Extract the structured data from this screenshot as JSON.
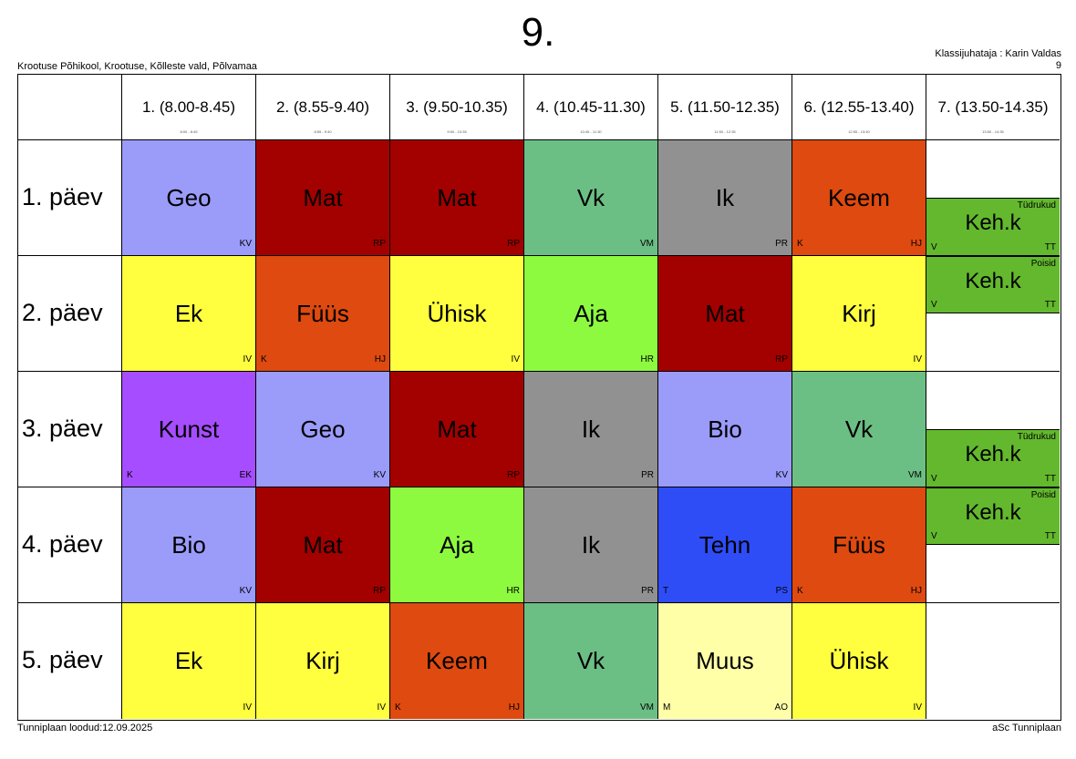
{
  "header": {
    "title": "9.",
    "school": "Krootuse Põhikool, Krootuse, Kõlleste vald, Põlvamaa",
    "class_teacher": "Klassijuhataja : Karin Valdas",
    "class_number": "9"
  },
  "footer": {
    "created": "Tunniplaan loodud:12.09.2025",
    "software": "aSc Tunniplaan"
  },
  "periods": [
    {
      "label": "1. (8.00-8.45)",
      "sub": "8:00 - 8:45"
    },
    {
      "label": "2. (8.55-9.40)",
      "sub": "8:55 - 9:40"
    },
    {
      "label": "3. (9.50-10.35)",
      "sub": "9:50 - 10:35"
    },
    {
      "label": "4. (10.45-11.30)",
      "sub": "10:45 - 11:30"
    },
    {
      "label": "5. (11.50-12.35)",
      "sub": "11:50 - 12:35"
    },
    {
      "label": "6. (12.55-13.40)",
      "sub": "12:55 - 13:40"
    },
    {
      "label": "7. (13.50-14.35)",
      "sub": "13:50 - 14:35"
    }
  ],
  "days": [
    {
      "label": "1. päev",
      "lessons": [
        {
          "subject": "Geo",
          "teacher": "KV",
          "room": "",
          "color": "#9b9bfa"
        },
        {
          "subject": "Mat",
          "teacher": "RP",
          "room": "",
          "color": "#a30000"
        },
        {
          "subject": "Mat",
          "teacher": "RP",
          "room": "",
          "color": "#a30000"
        },
        {
          "subject": "Vk",
          "teacher": "VM",
          "room": "",
          "color": "#6cbf84"
        },
        {
          "subject": "Ik",
          "teacher": "PR",
          "room": "",
          "color": "#919191"
        },
        {
          "subject": "Keem",
          "teacher": "HJ",
          "room": "K",
          "color": "#de4a0f"
        },
        {
          "split": true,
          "groups": [
            null,
            {
              "subject": "Keh.k",
              "group": "Tüdrukud",
              "teacher": "TT",
              "room": "V",
              "color": "#63b82e"
            }
          ]
        }
      ]
    },
    {
      "label": "2. päev",
      "lessons": [
        {
          "subject": "Ek",
          "teacher": "IV",
          "room": "",
          "color": "#ffff3f"
        },
        {
          "subject": "Füüs",
          "teacher": "HJ",
          "room": "K",
          "color": "#de4a0f"
        },
        {
          "subject": "Ühisk",
          "teacher": "IV",
          "room": "",
          "color": "#ffff3f"
        },
        {
          "subject": "Aja",
          "teacher": "HR",
          "room": "",
          "color": "#8dfa3f"
        },
        {
          "subject": "Mat",
          "teacher": "RP",
          "room": "",
          "color": "#a30000"
        },
        {
          "subject": "Kirj",
          "teacher": "IV",
          "room": "",
          "color": "#ffff3f"
        },
        {
          "split": true,
          "groups": [
            {
              "subject": "Keh.k",
              "group": "Poisid",
              "teacher": "TT",
              "room": "V",
              "color": "#63b82e"
            },
            null
          ]
        }
      ]
    },
    {
      "label": "3. päev",
      "lessons": [
        {
          "subject": "Kunst",
          "teacher": "EK",
          "room": "K",
          "color": "#a64dff"
        },
        {
          "subject": "Geo",
          "teacher": "KV",
          "room": "",
          "color": "#9b9bfa"
        },
        {
          "subject": "Mat",
          "teacher": "RP",
          "room": "",
          "color": "#a30000"
        },
        {
          "subject": "Ik",
          "teacher": "PR",
          "room": "",
          "color": "#919191"
        },
        {
          "subject": "Bio",
          "teacher": "KV",
          "room": "",
          "color": "#9b9bfa"
        },
        {
          "subject": "Vk",
          "teacher": "VM",
          "room": "",
          "color": "#6cbf84"
        },
        {
          "split": true,
          "groups": [
            null,
            {
              "subject": "Keh.k",
              "group": "Tüdrukud",
              "teacher": "TT",
              "room": "V",
              "color": "#63b82e"
            }
          ]
        }
      ]
    },
    {
      "label": "4. päev",
      "lessons": [
        {
          "subject": "Bio",
          "teacher": "KV",
          "room": "",
          "color": "#9b9bfa"
        },
        {
          "subject": "Mat",
          "teacher": "RP",
          "room": "",
          "color": "#a30000"
        },
        {
          "subject": "Aja",
          "teacher": "HR",
          "room": "",
          "color": "#8dfa3f"
        },
        {
          "subject": "Ik",
          "teacher": "PR",
          "room": "",
          "color": "#919191"
        },
        {
          "subject": "Tehn",
          "teacher": "PS",
          "room": "T",
          "color": "#2e4df7"
        },
        {
          "subject": "Füüs",
          "teacher": "HJ",
          "room": "K",
          "color": "#de4a0f"
        },
        {
          "split": true,
          "groups": [
            {
              "subject": "Keh.k",
              "group": "Poisid",
              "teacher": "TT",
              "room": "V",
              "color": "#63b82e"
            },
            null
          ]
        }
      ]
    },
    {
      "label": "5. päev",
      "lessons": [
        {
          "subject": "Ek",
          "teacher": "IV",
          "room": "",
          "color": "#ffff3f"
        },
        {
          "subject": "Kirj",
          "teacher": "IV",
          "room": "",
          "color": "#ffff3f"
        },
        {
          "subject": "Keem",
          "teacher": "HJ",
          "room": "K",
          "color": "#de4a0f"
        },
        {
          "subject": "Vk",
          "teacher": "VM",
          "room": "",
          "color": "#6cbf84"
        },
        {
          "subject": "Muus",
          "teacher": "AO",
          "room": "M",
          "color": "#ffffa8"
        },
        {
          "subject": "Ühisk",
          "teacher": "IV",
          "room": "",
          "color": "#ffff3f"
        },
        null
      ]
    }
  ]
}
